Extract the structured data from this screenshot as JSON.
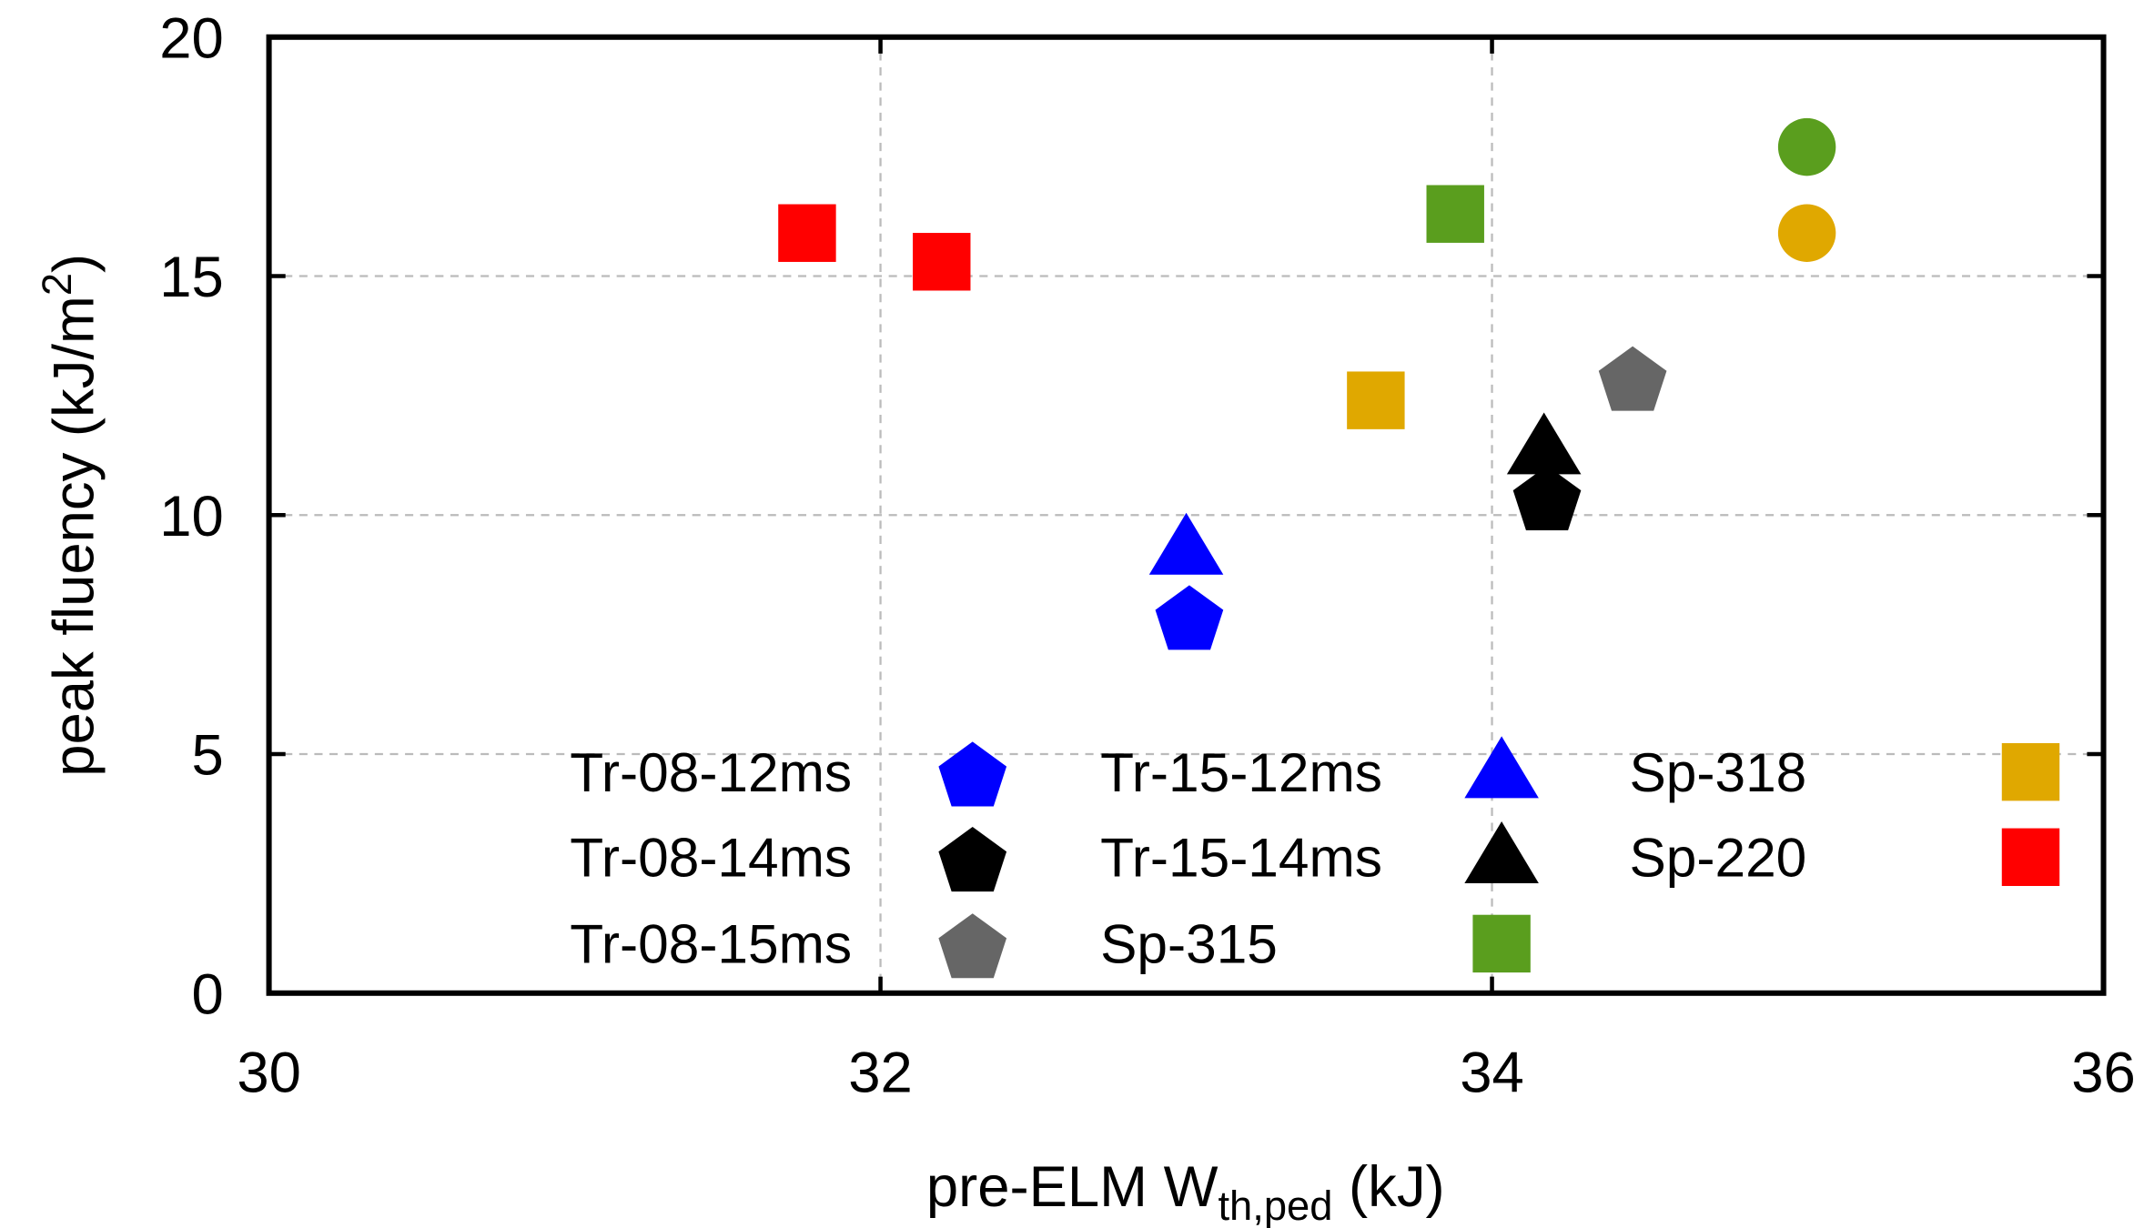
{
  "chart_data": {
    "type": "scatter",
    "x_label": {
      "main": "pre-ELM W",
      "sub": "th,ped",
      "end": " (kJ)"
    },
    "y_label": {
      "main": "peak fluency (kJ/m",
      "sup": "2",
      "end": ")"
    },
    "xlim": [
      30,
      36
    ],
    "xticks": [
      30,
      32,
      34,
      36
    ],
    "ylim": [
      0,
      20
    ],
    "yticks": [
      0,
      5,
      10,
      15,
      20
    ],
    "grid": true,
    "series": [
      {
        "name": "Tr-08-12ms",
        "color": "#0000ff",
        "marker": "pentagon",
        "x": [
          33.01
        ],
        "values": [
          7.9
        ]
      },
      {
        "name": "Tr-08-14ms",
        "color": "#000000",
        "marker": "pentagon",
        "x": [
          34.18
        ],
        "values": [
          10.4
        ]
      },
      {
        "name": "Tr-08-15ms",
        "color": "#666666",
        "marker": "pentagon",
        "x": [
          34.46
        ],
        "values": [
          12.9
        ]
      },
      {
        "name": "Tr-15-12ms",
        "color": "#0000ff",
        "marker": "triangle",
        "x": [
          33.0
        ],
        "values": [
          9.3
        ]
      },
      {
        "name": "Tr-15-14ms",
        "color": "#000000",
        "marker": "triangle",
        "x": [
          34.17
        ],
        "values": [
          11.4
        ]
      },
      {
        "name": "Sp-315",
        "color": "#5a9e1e",
        "marker": [
          "square",
          "circle"
        ],
        "x": [
          33.88,
          35.03
        ],
        "values": [
          16.3,
          17.7
        ]
      },
      {
        "name": "Sp-318",
        "color": "#e0a800",
        "marker": [
          "square",
          "circle"
        ],
        "x": [
          33.62,
          35.03
        ],
        "values": [
          12.4,
          15.9
        ]
      },
      {
        "name": "Sp-220",
        "color": "#ff0000",
        "marker": "square",
        "x": [
          31.76,
          32.2
        ],
        "values": [
          15.9,
          15.3
        ]
      }
    ]
  }
}
